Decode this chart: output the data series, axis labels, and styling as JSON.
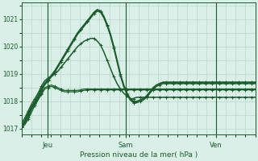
{
  "title": "Pression niveau de la mer( hPa )",
  "background_color": "#d9efe8",
  "grid_color": "#b8d8cc",
  "line_color": "#1a5c2a",
  "ylim": [
    1016.8,
    1021.6
  ],
  "yticks": [
    1017,
    1018,
    1019,
    1020,
    1021
  ],
  "xtick_labels": [
    "Jeu",
    "Sam",
    "Ven"
  ],
  "xtick_positions": [
    8,
    32,
    60
  ],
  "xlim": [
    0,
    72
  ],
  "series": [
    [
      1017.1,
      1017.2,
      1017.4,
      1017.7,
      1017.9,
      1018.1,
      1018.3,
      1018.5,
      1018.55,
      1018.6,
      1018.55,
      1018.5,
      1018.45,
      1018.4,
      1018.4,
      1018.4,
      1018.4,
      1018.4,
      1018.42,
      1018.45,
      1018.45,
      1018.45,
      1018.45,
      1018.45,
      1018.45,
      1018.45,
      1018.45,
      1018.45,
      1018.45,
      1018.45,
      1018.45,
      1018.45,
      1018.45,
      1018.45,
      1018.45,
      1018.45,
      1018.45,
      1018.45,
      1018.45,
      1018.45,
      1018.45,
      1018.45,
      1018.45,
      1018.45,
      1018.45,
      1018.45,
      1018.45,
      1018.45,
      1018.45,
      1018.45,
      1018.45,
      1018.45,
      1018.45,
      1018.45,
      1018.45,
      1018.45,
      1018.45,
      1018.45,
      1018.45,
      1018.45,
      1018.45,
      1018.45,
      1018.45,
      1018.45,
      1018.45,
      1018.45,
      1018.45,
      1018.45,
      1018.45,
      1018.45,
      1018.45,
      1018.45
    ],
    [
      1017.05,
      1017.15,
      1017.35,
      1017.6,
      1017.85,
      1018.05,
      1018.25,
      1018.45,
      1018.5,
      1018.55,
      1018.5,
      1018.45,
      1018.4,
      1018.35,
      1018.35,
      1018.35,
      1018.35,
      1018.35,
      1018.38,
      1018.4,
      1018.42,
      1018.42,
      1018.42,
      1018.42,
      1018.42,
      1018.42,
      1018.42,
      1018.42,
      1018.42,
      1018.42,
      1018.42,
      1018.42,
      1018.42,
      1018.42,
      1018.42,
      1018.42,
      1018.42,
      1018.42,
      1018.42,
      1018.42,
      1018.42,
      1018.42,
      1018.42,
      1018.42,
      1018.42,
      1018.42,
      1018.42,
      1018.42,
      1018.42,
      1018.42,
      1018.42,
      1018.42,
      1018.42,
      1018.42,
      1018.42,
      1018.42,
      1018.42,
      1018.42,
      1018.42,
      1018.42,
      1018.42,
      1018.42,
      1018.42,
      1018.42,
      1018.42,
      1018.42,
      1018.42,
      1018.42,
      1018.42,
      1018.42,
      1018.42,
      1018.42
    ],
    [
      1017.2,
      1017.4,
      1017.65,
      1017.9,
      1018.1,
      1018.3,
      1018.55,
      1018.75,
      1018.85,
      1018.9,
      1019.0,
      1019.1,
      1019.25,
      1019.4,
      1019.55,
      1019.7,
      1019.85,
      1020.0,
      1020.1,
      1020.2,
      1020.25,
      1020.3,
      1020.3,
      1020.2,
      1020.05,
      1019.8,
      1019.5,
      1019.2,
      1018.9,
      1018.65,
      1018.45,
      1018.3,
      1018.2,
      1018.1,
      1018.1,
      1018.15,
      1018.15,
      1018.15,
      1018.15,
      1018.15,
      1018.15,
      1018.15,
      1018.15,
      1018.15,
      1018.15,
      1018.15,
      1018.15,
      1018.15,
      1018.15,
      1018.15,
      1018.15,
      1018.15,
      1018.15,
      1018.15,
      1018.15,
      1018.15,
      1018.15,
      1018.15,
      1018.15,
      1018.15,
      1018.15,
      1018.15,
      1018.15,
      1018.15,
      1018.15,
      1018.15,
      1018.15,
      1018.15,
      1018.15,
      1018.15,
      1018.15,
      1018.15
    ],
    [
      1017.1,
      1017.3,
      1017.55,
      1017.8,
      1018.0,
      1018.2,
      1018.45,
      1018.65,
      1018.8,
      1018.95,
      1019.1,
      1019.3,
      1019.5,
      1019.7,
      1019.9,
      1020.1,
      1020.3,
      1020.5,
      1020.65,
      1020.8,
      1020.95,
      1021.1,
      1021.25,
      1021.35,
      1021.3,
      1021.1,
      1020.8,
      1020.45,
      1020.0,
      1019.5,
      1019.0,
      1018.6,
      1018.3,
      1018.1,
      1018.0,
      1018.0,
      1018.05,
      1018.1,
      1018.2,
      1018.35,
      1018.5,
      1018.6,
      1018.65,
      1018.7,
      1018.7,
      1018.7,
      1018.7,
      1018.7,
      1018.7,
      1018.7,
      1018.7,
      1018.7,
      1018.7,
      1018.7,
      1018.7,
      1018.7,
      1018.7,
      1018.7,
      1018.7,
      1018.7,
      1018.7,
      1018.7,
      1018.7,
      1018.7,
      1018.7,
      1018.7,
      1018.7,
      1018.7,
      1018.7,
      1018.7,
      1018.7,
      1018.7
    ],
    [
      1017.05,
      1017.25,
      1017.5,
      1017.75,
      1017.95,
      1018.15,
      1018.4,
      1018.6,
      1018.75,
      1018.9,
      1019.05,
      1019.25,
      1019.45,
      1019.65,
      1019.85,
      1020.05,
      1020.25,
      1020.45,
      1020.6,
      1020.75,
      1020.9,
      1021.05,
      1021.2,
      1021.3,
      1021.25,
      1021.05,
      1020.75,
      1020.4,
      1019.95,
      1019.45,
      1018.95,
      1018.55,
      1018.25,
      1018.05,
      1017.95,
      1017.95,
      1018.0,
      1018.05,
      1018.15,
      1018.3,
      1018.45,
      1018.55,
      1018.6,
      1018.65,
      1018.65,
      1018.65,
      1018.65,
      1018.65,
      1018.65,
      1018.65,
      1018.65,
      1018.65,
      1018.65,
      1018.65,
      1018.65,
      1018.65,
      1018.65,
      1018.65,
      1018.65,
      1018.65,
      1018.65,
      1018.65,
      1018.65,
      1018.65,
      1018.65,
      1018.65,
      1018.65,
      1018.65,
      1018.65,
      1018.65,
      1018.65,
      1018.65
    ]
  ]
}
